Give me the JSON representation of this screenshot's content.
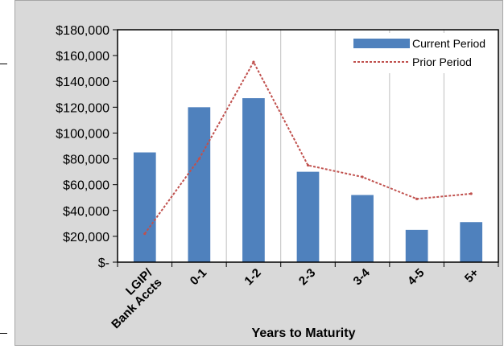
{
  "chart_data": {
    "type": "bar",
    "categories": [
      "LGIP/ Bank Accts",
      "0-1",
      "1-2",
      "2-3",
      "3-4",
      "4-5",
      "5+"
    ],
    "xlabel": "Years to Maturity",
    "ylabel": "",
    "ylim": [
      0,
      180000
    ],
    "y_tick_values": [
      0,
      20000,
      40000,
      60000,
      80000,
      100000,
      120000,
      140000,
      160000,
      180000
    ],
    "y_tick_labels": [
      "$-",
      "$20,000",
      "$40,000",
      "$60,000",
      "$80,000",
      "$100,000",
      "$120,000",
      "$140,000",
      "$160,000",
      "$180,000"
    ],
    "grid": "vertical",
    "legend_position": "top-right",
    "series": [
      {
        "name": "Current Period",
        "kind": "bar",
        "color": "#4f81bd",
        "values": [
          85000,
          120000,
          127000,
          70000,
          52000,
          25000,
          31000
        ]
      },
      {
        "name": "Prior Period",
        "kind": "line",
        "style": "dotted",
        "color": "#c0504d",
        "values": [
          22000,
          80000,
          155000,
          75000,
          66000,
          49000,
          53000
        ]
      }
    ]
  }
}
